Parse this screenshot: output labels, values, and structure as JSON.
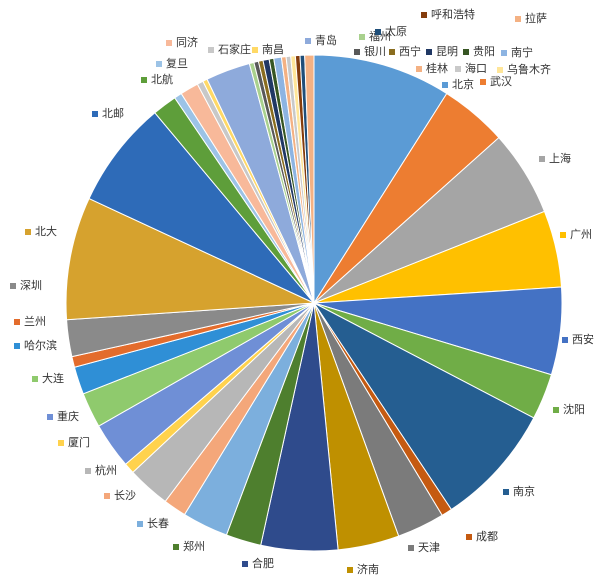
{
  "chart_data": {
    "type": "pie",
    "title": "",
    "legend": "none",
    "slices": [
      {
        "label": "北京",
        "value": 9.0,
        "color": "#5b9bd5"
      },
      {
        "label": "武汉",
        "value": 4.4,
        "color": "#ed7d31"
      },
      {
        "label": "上海",
        "value": 5.6,
        "color": "#a5a5a5"
      },
      {
        "label": "广州",
        "value": 5.0,
        "color": "#ffc000"
      },
      {
        "label": "西安",
        "value": 5.7,
        "color": "#4472c4"
      },
      {
        "label": "沈阳",
        "value": 3.0,
        "color": "#70ad47"
      },
      {
        "label": "南京",
        "value": 8.0,
        "color": "#255e91"
      },
      {
        "label": "成都",
        "value": 0.7,
        "color": "#c55a11"
      },
      {
        "label": "天津",
        "value": 3.1,
        "color": "#7b7b7b"
      },
      {
        "label": "济南",
        "value": 4.0,
        "color": "#bf9000"
      },
      {
        "label": "合肥",
        "value": 5.0,
        "color": "#2f4b8c"
      },
      {
        "label": "郑州",
        "value": 2.3,
        "color": "#4e7f2e"
      },
      {
        "label": "长春",
        "value": 3.0,
        "color": "#7cafdd"
      },
      {
        "label": "长沙",
        "value": 1.5,
        "color": "#f4a77a"
      },
      {
        "label": "杭州",
        "value": 2.8,
        "color": "#b7b7b7"
      },
      {
        "label": "厦门",
        "value": 0.7,
        "color": "#ffd24d"
      },
      {
        "label": "重庆",
        "value": 3.0,
        "color": "#6f8fd6"
      },
      {
        "label": "大连",
        "value": 2.3,
        "color": "#8fca6d"
      },
      {
        "label": "哈尔滨",
        "value": 1.8,
        "color": "#2f8fd6"
      },
      {
        "label": "兰州",
        "value": 0.7,
        "color": "#e36c2c"
      },
      {
        "label": "深圳",
        "value": 2.4,
        "color": "#8a8a8a"
      },
      {
        "label": "北大",
        "value": 8.0,
        "color": "#d6a22e"
      },
      {
        "label": "北邮",
        "value": 7.0,
        "color": "#2e6bb8"
      },
      {
        "label": "北航",
        "value": 1.6,
        "color": "#5e9e3a"
      },
      {
        "label": "复旦",
        "value": 0.5,
        "color": "#9cc3e6"
      },
      {
        "label": "同济",
        "value": 1.2,
        "color": "#f8b99a"
      },
      {
        "label": "石家庄",
        "value": 0.4,
        "color": "#c8c8c8"
      },
      {
        "label": "南昌",
        "value": 0.3,
        "color": "#ffd966"
      },
      {
        "label": "青岛",
        "value": 2.9,
        "color": "#8eaadb"
      },
      {
        "label": "福州",
        "value": 0.3,
        "color": "#a9d18e"
      },
      {
        "label": "银川",
        "value": 0.3,
        "color": "#595959"
      },
      {
        "label": "西宁",
        "value": 0.3,
        "color": "#8a6d1f"
      },
      {
        "label": "昆明",
        "value": 0.4,
        "color": "#203864"
      },
      {
        "label": "贵阳",
        "value": 0.3,
        "color": "#375623"
      },
      {
        "label": "南宁",
        "value": 0.5,
        "color": "#8db4e2"
      },
      {
        "label": "桂林",
        "value": 0.3,
        "color": "#f4b183"
      },
      {
        "label": "海口",
        "value": 0.3,
        "color": "#c9c9c9"
      },
      {
        "label": "乌鲁木齐",
        "value": 0.3,
        "color": "#ffe699"
      },
      {
        "label": "呼和浩特",
        "value": 0.3,
        "color": "#843c0c"
      },
      {
        "label": "太原",
        "value": 0.3,
        "color": "#1f4e79"
      },
      {
        "label": "拉萨",
        "value": 0.6,
        "color": "#f4b183"
      }
    ]
  }
}
